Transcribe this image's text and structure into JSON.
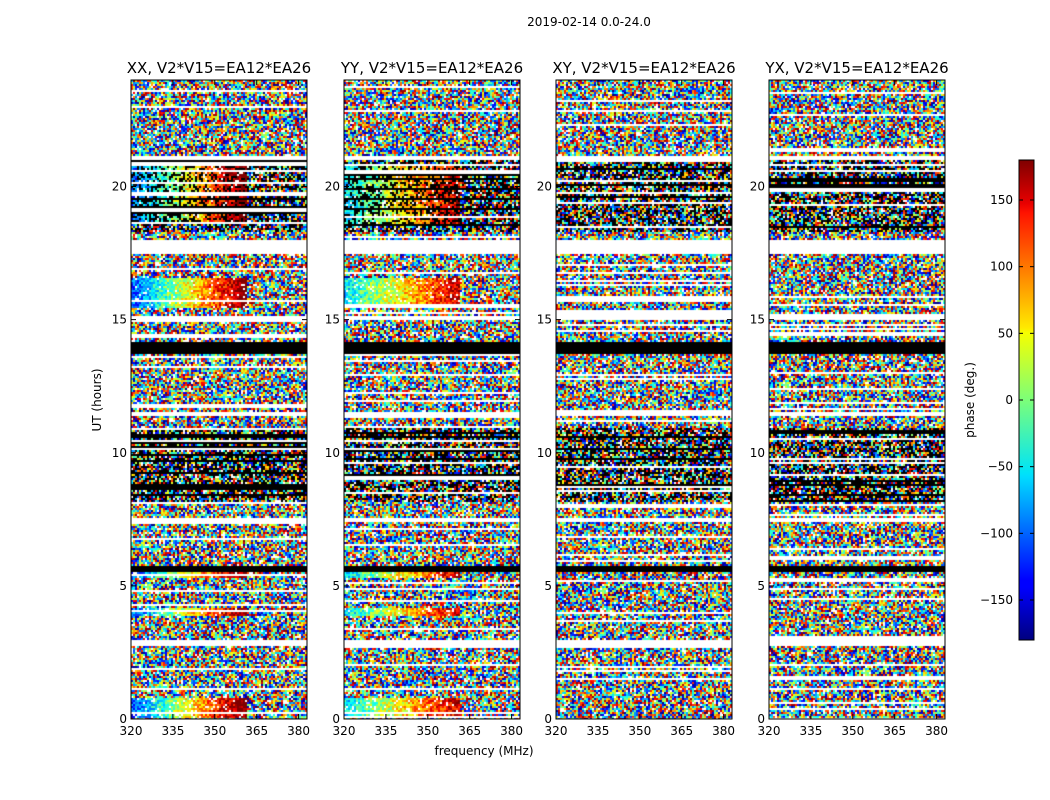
{
  "chart_data": {
    "type": "heatmap",
    "suptitle": "2019-02-14 0.0-24.0",
    "xlabel": "frequency (MHz)",
    "ylabel": "UT (hours)",
    "xlim": [
      320,
      383
    ],
    "ylim": [
      0,
      24
    ],
    "xticks": [
      320,
      335,
      350,
      365,
      380
    ],
    "yticks": [
      0,
      5,
      10,
      15,
      20
    ],
    "panels": [
      {
        "title": "XX, V2*V15=EA12*EA26",
        "pol": "XX",
        "signal_strength": 1.0
      },
      {
        "title": "YY, V2*V15=EA12*EA26",
        "pol": "YY",
        "signal_strength": 0.9
      },
      {
        "title": "XY, V2*V15=EA12*EA26",
        "pol": "XY",
        "signal_strength": 0.0
      },
      {
        "title": "YX, V2*V15=EA12*EA26",
        "pol": "YX",
        "signal_strength": 0.0
      }
    ],
    "colorbar": {
      "label": "phase (deg.)",
      "range": [
        -180,
        180
      ],
      "ticks": [
        -150,
        -100,
        -50,
        0,
        50,
        100,
        150
      ],
      "colormap": "jet"
    },
    "flagged_hours_black": [
      [
        5.55,
        5.8
      ],
      [
        13.75,
        14.2
      ]
    ],
    "flagged_hours_white": [
      [
        2.8,
        3.0
      ],
      [
        7.45,
        7.55
      ],
      [
        11.4,
        11.6
      ],
      [
        17.5,
        18.0
      ],
      [
        15.0,
        15.2
      ],
      [
        21.0,
        21.15
      ]
    ],
    "dense_bands_hours": [
      [
        8.2,
        11.0
      ],
      [
        18.3,
        21.0
      ]
    ],
    "coherent_phase_bands_hours": [
      [
        0.1,
        0.8
      ],
      [
        3.9,
        4.2
      ],
      [
        5.3,
        5.55
      ],
      [
        15.5,
        16.6
      ],
      [
        18.6,
        20.9
      ]
    ]
  }
}
